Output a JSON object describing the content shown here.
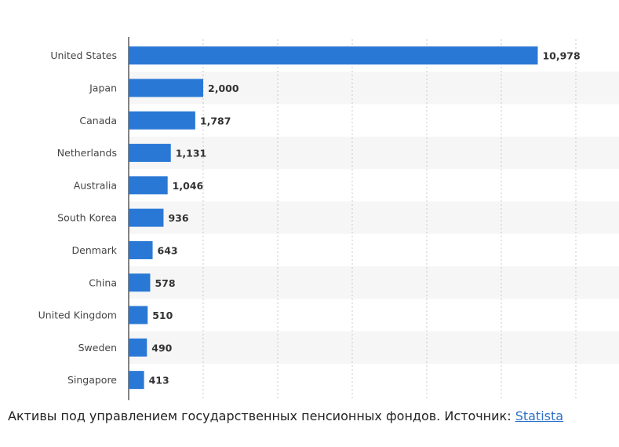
{
  "chart_data": {
    "type": "bar",
    "orientation": "horizontal",
    "categories": [
      "United States",
      "Japan",
      "Canada",
      "Netherlands",
      "Australia",
      "South Korea",
      "Denmark",
      "China",
      "United Kingdom",
      "Sweden",
      "Singapore"
    ],
    "values": [
      10978,
      2000,
      1787,
      1131,
      1046,
      936,
      643,
      578,
      510,
      490,
      413
    ],
    "value_labels": [
      "10,978",
      "2,000",
      "1,787",
      "1,131",
      "1,046",
      "936",
      "643",
      "578",
      "510",
      "490",
      "413"
    ],
    "xlim": [
      0,
      12000
    ],
    "grid": true,
    "bar_color": "#2a78d6",
    "stripe_color": "#f6f6f6"
  },
  "caption": {
    "text": "Активы под управлением государственных пенсионных фондов. Источник: ",
    "link": "Statista"
  }
}
